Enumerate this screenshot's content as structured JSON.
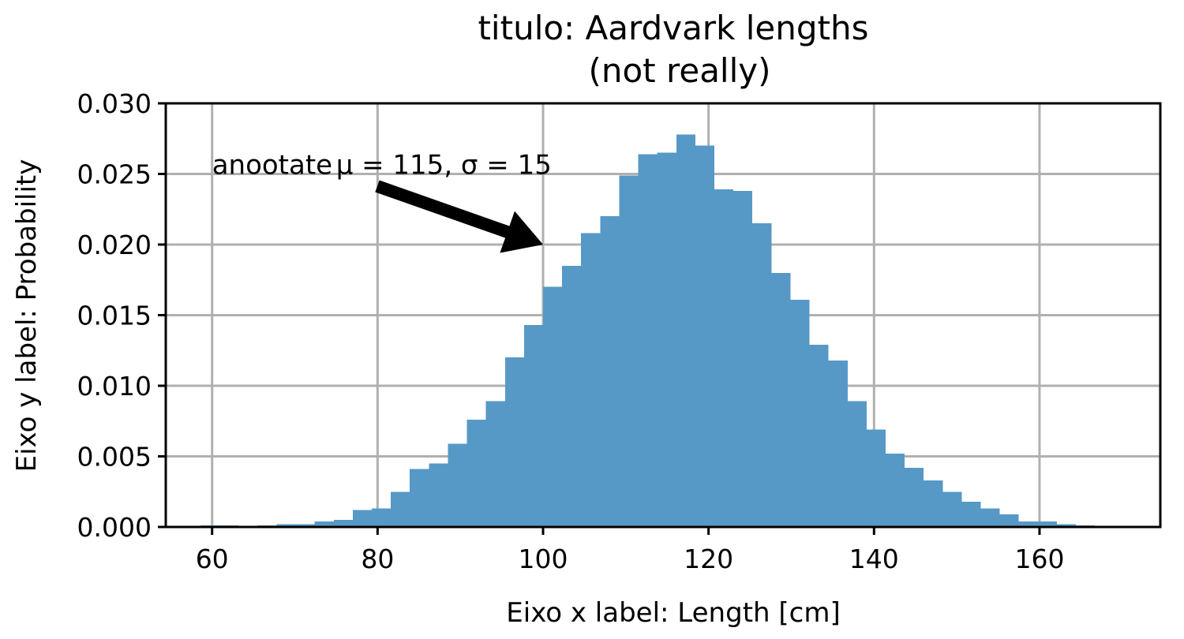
{
  "chart_data": {
    "type": "bar",
    "title": [
      "titulo: Aardvark lengths",
      "(not really)"
    ],
    "xlabel": "Eixo x label: Length [cm]",
    "ylabel": "Eixo y label: Probability",
    "xlim": [
      54.4,
      174.6
    ],
    "ylim": [
      0,
      0.03
    ],
    "x_ticks": [
      60,
      80,
      100,
      120,
      140,
      160
    ],
    "x_tick_labels": [
      "60",
      "80",
      "100",
      "120",
      "140",
      "160"
    ],
    "y_ticks": [
      0,
      0.005,
      0.01,
      0.015,
      0.02,
      0.025,
      0.03
    ],
    "y_tick_labels": [
      "0.000",
      "0.005",
      "0.010",
      "0.015",
      "0.020",
      "0.025",
      "0.030"
    ],
    "grid": true,
    "bar_color": "#5799c6",
    "bin_start": 58.6,
    "bin_width": 2.3,
    "values": [
      0.0001,
      0.0001,
      0,
      0.0001,
      0.0002,
      0.0002,
      0.0004,
      0.0005,
      0.0012,
      0.0013,
      0.0025,
      0.0041,
      0.0045,
      0.0059,
      0.0076,
      0.0089,
      0.012,
      0.0143,
      0.017,
      0.0185,
      0.0208,
      0.022,
      0.0249,
      0.0264,
      0.0265,
      0.0278,
      0.027,
      0.0239,
      0.0238,
      0.0215,
      0.018,
      0.0161,
      0.0129,
      0.0118,
      0.0089,
      0.0069,
      0.0052,
      0.0042,
      0.0033,
      0.0025,
      0.0018,
      0.0013,
      0.0009,
      0.0004,
      0.0004,
      0.0002,
      0.0001,
      0
    ],
    "annotation": {
      "prefix": "anootate",
      "formula": "μ = 115,  σ = 15",
      "text_x": 60,
      "text_y": 0.025,
      "point_x": 100,
      "point_y": 0.02
    }
  }
}
